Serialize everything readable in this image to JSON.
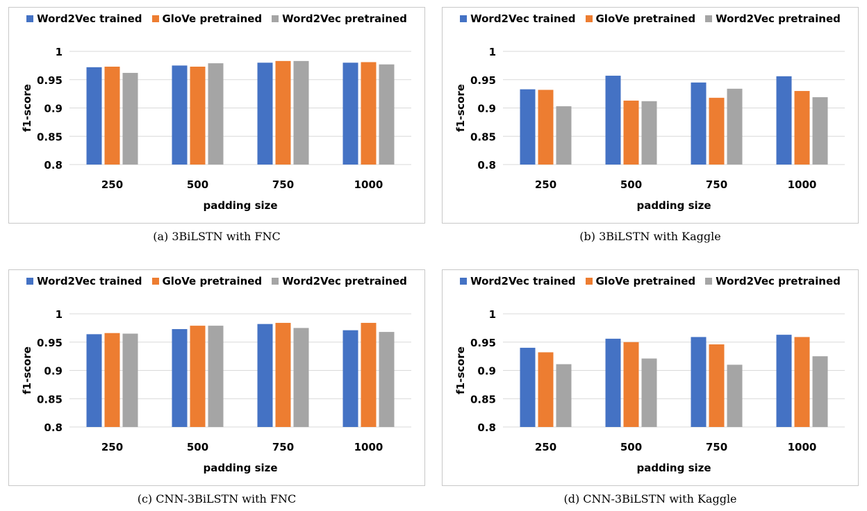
{
  "legend": [
    {
      "label": "Word2Vec trained",
      "color": "#4472C4"
    },
    {
      "label": "GloVe pretrained",
      "color": "#ED7D31"
    },
    {
      "label": "Word2Vec pretrained",
      "color": "#A5A5A5"
    }
  ],
  "captions": [
    "(a) 3BiLSTN with FNC",
    "(b) 3BiLSTN with Kaggle",
    "(c) CNN-3BiLSTN with FNC",
    "(d) CNN-3BiLSTN with Kaggle"
  ],
  "chart_data": [
    {
      "type": "bar",
      "categories": [
        "250",
        "500",
        "750",
        "1000"
      ],
      "xlabel": "padding size",
      "ylabel": "f1-score",
      "ylim": [
        0.8,
        1
      ],
      "yticks": [
        "0.8",
        "0.85",
        "0.9",
        "0.95",
        "1"
      ],
      "grid": true,
      "legend_position": "top",
      "series": [
        {
          "name": "Word2Vec trained",
          "values": [
            0.972,
            0.975,
            0.98,
            0.98
          ]
        },
        {
          "name": "GloVe pretrained",
          "values": [
            0.973,
            0.973,
            0.983,
            0.981
          ]
        },
        {
          "name": "Word2Vec pretrained",
          "values": [
            0.962,
            0.979,
            0.983,
            0.977
          ]
        }
      ]
    },
    {
      "type": "bar",
      "categories": [
        "250",
        "500",
        "750",
        "1000"
      ],
      "xlabel": "padding size",
      "ylabel": "f1-score",
      "ylim": [
        0.8,
        1
      ],
      "yticks": [
        "0.8",
        "0.85",
        "0.9",
        "0.95",
        "1"
      ],
      "grid": true,
      "legend_position": "top",
      "series": [
        {
          "name": "Word2Vec trained",
          "values": [
            0.933,
            0.957,
            0.945,
            0.956
          ]
        },
        {
          "name": "GloVe pretrained",
          "values": [
            0.932,
            0.913,
            0.918,
            0.93
          ]
        },
        {
          "name": "Word2Vec pretrained",
          "values": [
            0.903,
            0.912,
            0.934,
            0.919
          ]
        }
      ]
    },
    {
      "type": "bar",
      "categories": [
        "250",
        "500",
        "750",
        "1000"
      ],
      "xlabel": "padding size",
      "ylabel": "f1-score",
      "ylim": [
        0.8,
        1
      ],
      "yticks": [
        "0.8",
        "0.85",
        "0.9",
        "0.95",
        "1"
      ],
      "grid": true,
      "legend_position": "top",
      "series": [
        {
          "name": "Word2Vec trained",
          "values": [
            0.964,
            0.973,
            0.982,
            0.971
          ]
        },
        {
          "name": "GloVe pretrained",
          "values": [
            0.966,
            0.979,
            0.984,
            0.984
          ]
        },
        {
          "name": "Word2Vec pretrained",
          "values": [
            0.965,
            0.979,
            0.975,
            0.968
          ]
        }
      ]
    },
    {
      "type": "bar",
      "categories": [
        "250",
        "500",
        "750",
        "1000"
      ],
      "xlabel": "padding size",
      "ylabel": "f1-score",
      "ylim": [
        0.8,
        1
      ],
      "yticks": [
        "0.8",
        "0.85",
        "0.9",
        "0.95",
        "1"
      ],
      "grid": true,
      "legend_position": "top",
      "series": [
        {
          "name": "Word2Vec trained",
          "values": [
            0.94,
            0.956,
            0.959,
            0.963
          ]
        },
        {
          "name": "GloVe pretrained",
          "values": [
            0.932,
            0.95,
            0.946,
            0.959
          ]
        },
        {
          "name": "Word2Vec pretrained",
          "values": [
            0.911,
            0.921,
            0.91,
            0.925
          ]
        }
      ]
    }
  ]
}
